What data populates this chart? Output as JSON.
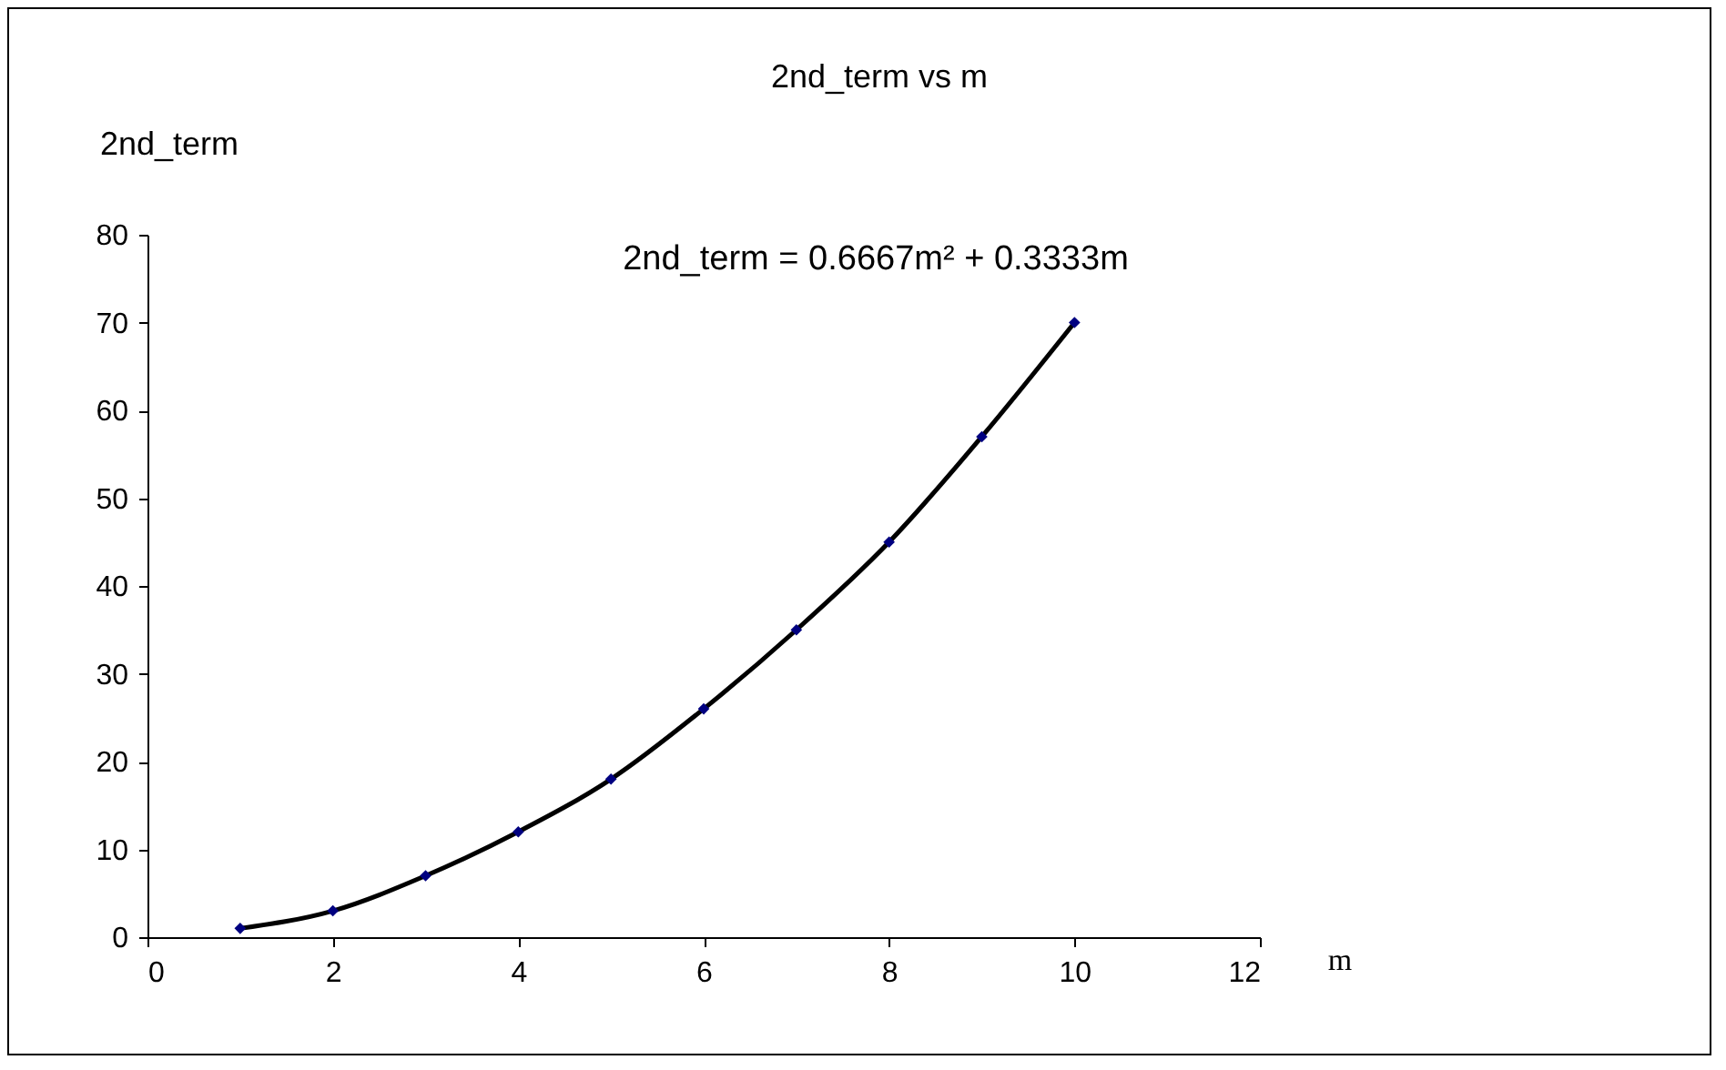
{
  "chart_data": {
    "type": "scatter",
    "title": "2nd_term vs m",
    "xlabel": "m",
    "ylabel": "2nd_term",
    "annotations": [
      "2nd_term = 0.6667m² + 0.3333m"
    ],
    "x": [
      1,
      2,
      3,
      4,
      5,
      6,
      7,
      8,
      9,
      10
    ],
    "series": [
      {
        "color": "#000080",
        "marker": "diamond",
        "values": [
          1,
          3,
          7,
          12,
          18,
          26,
          35,
          45,
          57,
          70
        ]
      },
      {
        "type": "line",
        "color": "#000000",
        "x": [
          1,
          2,
          3,
          4,
          5,
          6,
          7,
          8,
          9,
          10
        ],
        "values": [
          1,
          3,
          7,
          12,
          18,
          26,
          35,
          45,
          57,
          70
        ]
      }
    ],
    "xlim": [
      0,
      12
    ],
    "xticks": [
      0,
      2,
      4,
      6,
      8,
      10,
      12
    ],
    "ylim": [
      0,
      80
    ],
    "yticks": [
      0,
      10,
      20,
      30,
      40,
      50,
      60,
      70,
      80
    ],
    "grid": false,
    "line_style": "solid"
  }
}
